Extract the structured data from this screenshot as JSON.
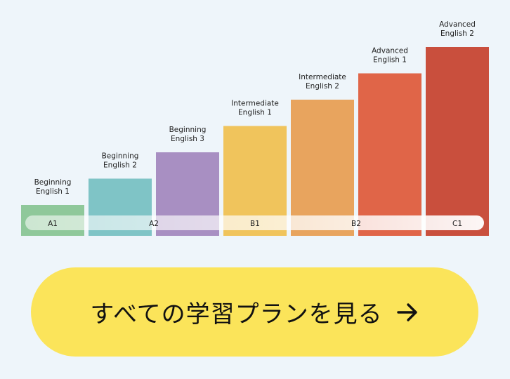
{
  "chart_data": {
    "type": "bar",
    "categories": [
      [
        "Beginning",
        "English 1"
      ],
      [
        "Beginning",
        "English 2"
      ],
      [
        "Beginning",
        "English 3"
      ],
      [
        "Intermediate",
        "English 1"
      ],
      [
        "Intermediate",
        "English 2"
      ],
      [
        "Advanced",
        "English 1"
      ],
      [
        "Advanced",
        "English 2"
      ]
    ],
    "values": [
      1,
      2,
      3,
      4,
      5,
      6,
      7
    ],
    "colors": [
      "#8fc89a",
      "#7fc4c6",
      "#a88fc2",
      "#f0c45c",
      "#e8a45e",
      "#e06548",
      "#c94f3d"
    ],
    "cefr_levels": [
      "A1",
      "A2",
      "B1",
      "B2",
      "C1"
    ]
  },
  "cta": {
    "label": "すべての学習プランを見る",
    "icon": "arrow-right-icon"
  }
}
